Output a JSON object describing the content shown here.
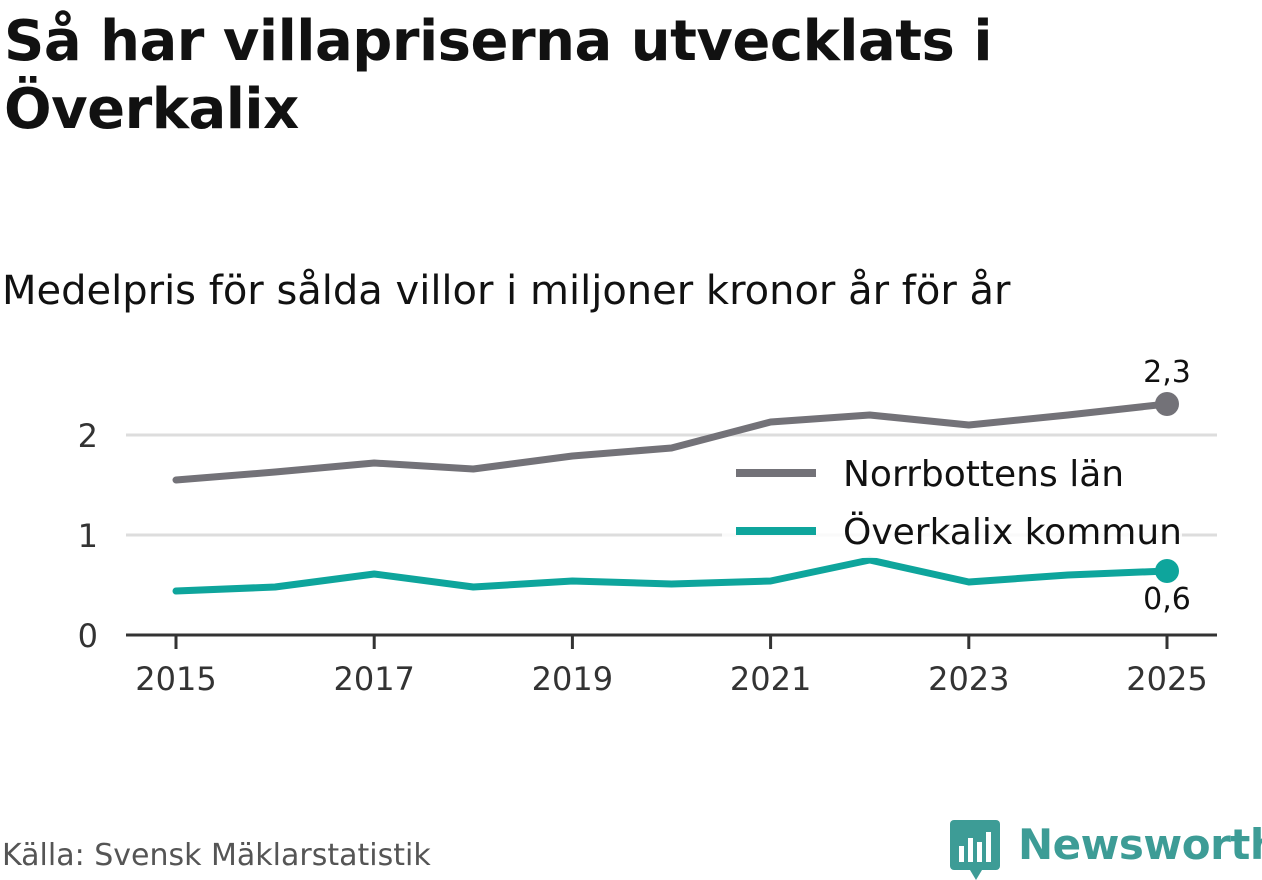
{
  "header": {
    "title": "Så har villapriserna utvecklats i Överkalix",
    "subtitle": "Medelpris för sålda villor i miljoner kronor år för år"
  },
  "footer": {
    "source": "Källa: Svensk Mäklarstatistik",
    "brand": "Newsworthy"
  },
  "colors": {
    "norrbotten": "#737278",
    "overkalix": "#0ea59c",
    "grid": "#dddddd",
    "axis": "#333333",
    "brand": "#3d9c96"
  },
  "chart_data": {
    "type": "line",
    "title": "Medelpris för sålda villor i miljoner kronor år för år",
    "xlabel": "",
    "ylabel": "",
    "x": [
      2015,
      2016,
      2017,
      2018,
      2019,
      2020,
      2021,
      2022,
      2023,
      2024,
      2025
    ],
    "xticks": [
      "2015",
      "2017",
      "2019",
      "2021",
      "2023",
      "2025"
    ],
    "yticks": [
      "0",
      "1",
      "2"
    ],
    "ylim": [
      0,
      2.3
    ],
    "grid": true,
    "legend": "right",
    "series": [
      {
        "name": "Norrbottens län",
        "values": [
          1.55,
          1.63,
          1.72,
          1.66,
          1.79,
          1.87,
          2.13,
          2.2,
          2.1,
          2.2,
          2.31
        ],
        "end_label": "2,3"
      },
      {
        "name": "Överkalix kommun",
        "values": [
          0.44,
          0.48,
          0.61,
          0.48,
          0.54,
          0.51,
          0.54,
          0.75,
          0.53,
          0.6,
          0.64
        ],
        "end_label": "0,6"
      }
    ]
  }
}
